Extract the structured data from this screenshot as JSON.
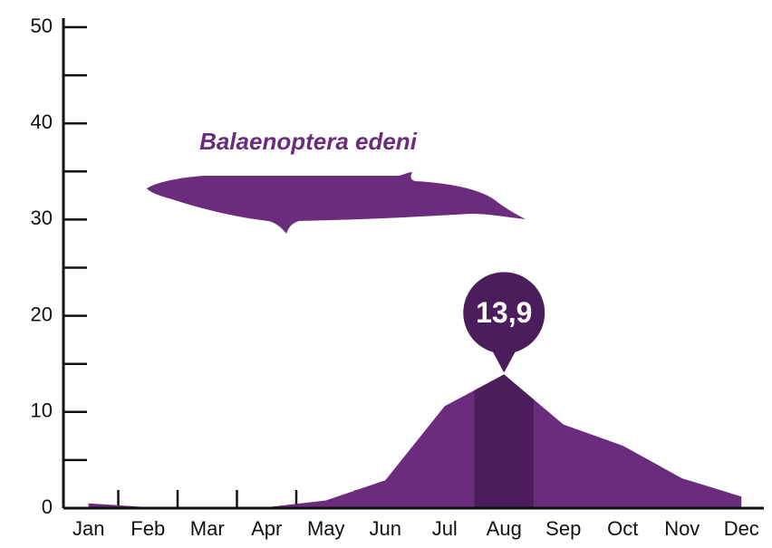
{
  "chart_data": {
    "type": "area",
    "annotation": "Balaenoptera edeni",
    "categories": [
      "Jan",
      "Feb",
      "Mar",
      "Apr",
      "May",
      "Jun",
      "Jul",
      "Aug",
      "Sep",
      "Oct",
      "Nov",
      "Dec"
    ],
    "values": [
      0.5,
      0.1,
      0,
      0.1,
      0.8,
      2.9,
      10.6,
      13.9,
      8.7,
      6.5,
      3.1,
      1.2
    ],
    "value_labels": [
      null,
      null,
      null,
      null,
      null,
      null,
      null,
      "13,9",
      null,
      null,
      null,
      null
    ],
    "color": "#6b2c7e",
    "highlight_color": "#4b1d5a",
    "ylim": [
      0,
      50
    ],
    "yticks": [
      0,
      10,
      20,
      30,
      40,
      50
    ],
    "yminor_ticks": [
      5,
      15,
      25,
      35,
      45
    ]
  }
}
